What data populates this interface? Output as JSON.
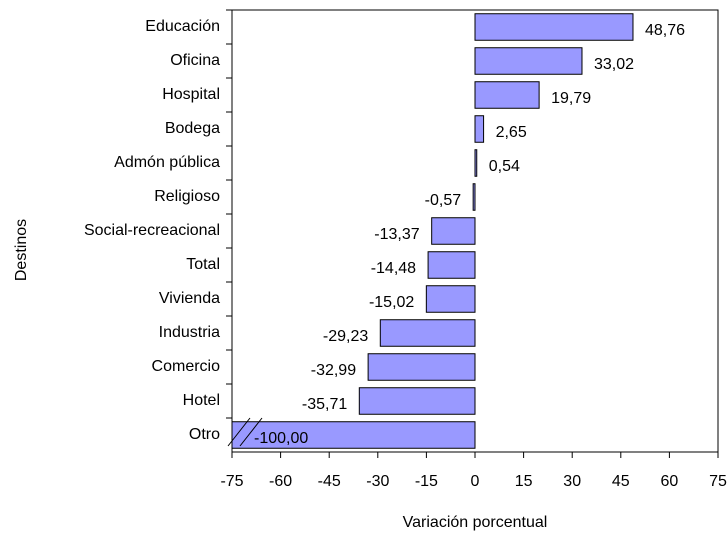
{
  "chart_data": {
    "type": "barh",
    "categories": [
      "Educación",
      "Oficina",
      "Hospital",
      "Bodega",
      "Admón pública",
      "Religioso",
      "Social-recreacional",
      "Total",
      "Vivienda",
      "Industria",
      "Comercio",
      "Hotel",
      "Otro"
    ],
    "values": [
      48.76,
      33.02,
      19.79,
      2.65,
      0.54,
      -0.57,
      -13.37,
      -14.48,
      -15.02,
      -29.23,
      -32.99,
      -35.71,
      -100.0
    ],
    "value_labels": [
      "48,76",
      "33,02",
      "19,79",
      "2,65",
      "0,54",
      "-0,57",
      "-13,37",
      "-14,48",
      "-15,02",
      "-29,23",
      "-32,99",
      "-35,71",
      "-100,00"
    ],
    "color": "#9999ff",
    "xlabel": "Variación porcentual",
    "ylabel": "Destinos",
    "xlim": [
      -75,
      75
    ],
    "xticks": [
      -75,
      -60,
      -45,
      -30,
      -15,
      0,
      15,
      30,
      45,
      60,
      75
    ],
    "grid": false
  }
}
